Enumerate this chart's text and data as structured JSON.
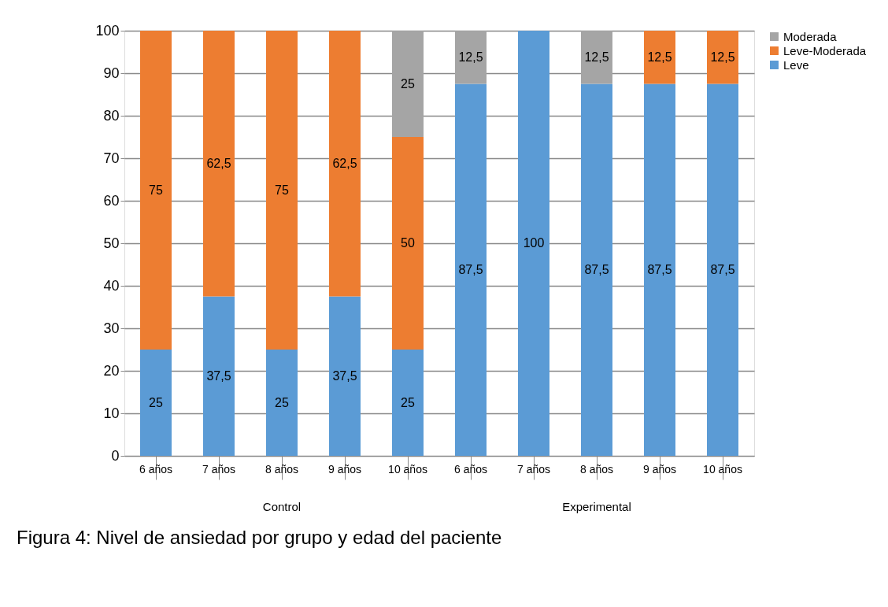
{
  "chart_data": {
    "type": "bar",
    "stacked": true,
    "title": "Figura 4: Nivel de ansiedad por grupo y edad del paciente",
    "categories": [
      "6 años",
      "7 años",
      "8 años",
      "9 años",
      "10 años",
      "6 años",
      "7 años",
      "8 años",
      "9 años",
      "10 años"
    ],
    "series": [
      {
        "name": "Leve",
        "color": "#5b9bd5",
        "values": [
          25,
          37.5,
          25,
          37.5,
          25,
          87.5,
          100,
          87.5,
          87.5,
          87.5
        ],
        "value_labels": [
          "25",
          "37,5",
          "25",
          "37,5",
          "25",
          "87,5",
          "100",
          "87,5",
          "87,5",
          "87,5"
        ]
      },
      {
        "name": "Leve-Moderada",
        "color": "#ed7d31",
        "values": [
          75,
          62.5,
          75,
          62.5,
          50,
          null,
          null,
          null,
          12.5,
          12.5
        ],
        "value_labels": [
          "75",
          "62,5",
          "75",
          "62,5",
          "50",
          null,
          null,
          null,
          "12,5",
          "12,5"
        ]
      },
      {
        "name": "Moderada",
        "color": "#a5a5a5",
        "values": [
          null,
          null,
          null,
          null,
          25,
          12.5,
          null,
          12.5,
          null,
          null
        ],
        "value_labels": [
          null,
          null,
          null,
          null,
          "25",
          "12,5",
          null,
          "12,5",
          null,
          null
        ]
      }
    ],
    "annotations": [
      "Control",
      "Experimental"
    ],
    "ylim": [
      0,
      100
    ],
    "yticks": [
      0,
      10,
      20,
      30,
      40,
      50,
      60,
      70,
      80,
      90,
      100
    ],
    "grid": "y",
    "legend": "right"
  }
}
